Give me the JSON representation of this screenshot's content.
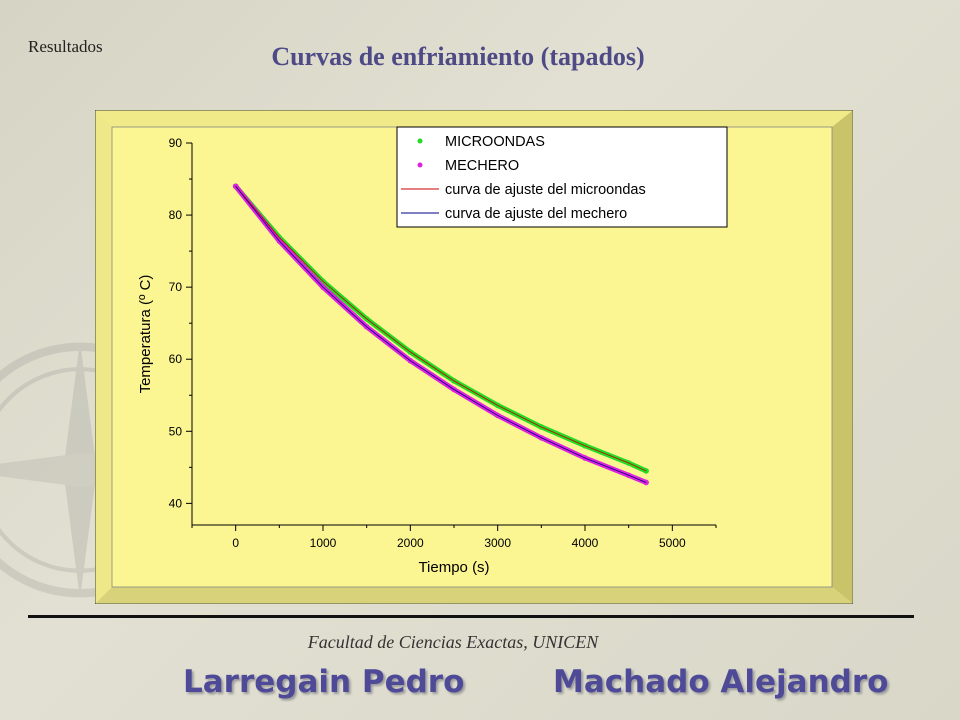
{
  "slide": {
    "section": "Resultados",
    "title": "Curvas de enfriamiento (tapados)",
    "faculty": "Facultad de Ciencias Exactas, UNICEN",
    "authors": [
      "Larregain Pedro",
      "Machado Alejandro"
    ]
  },
  "colors": {
    "plot_background": "#fbf592",
    "bevel": "#d8d27a",
    "microondas": "#22dd22",
    "mechero": "#dd22dd",
    "fit_microondas": "#cc0000",
    "fit_mechero": "#000080",
    "title": "#4d4a86",
    "authors": "#4e4a98"
  },
  "chart_data": {
    "type": "line",
    "xlabel": "Tiempo (s)",
    "ylabel": "Temperatura (º C)",
    "xlim": [
      -500,
      5500
    ],
    "ylim": [
      37,
      90
    ],
    "xticks": [
      0,
      1000,
      2000,
      3000,
      4000,
      5000
    ],
    "yticks": [
      40,
      50,
      60,
      70,
      80,
      90
    ],
    "grid": false,
    "legend_position": "top-right",
    "legend": [
      {
        "label": "MICROONDAS",
        "kind": "marker",
        "color": "#22dd22"
      },
      {
        "label": "MECHERO",
        "kind": "marker",
        "color": "#dd22dd"
      },
      {
        "label": "curva de ajuste del microondas",
        "kind": "line",
        "color": "#cc0000"
      },
      {
        "label": "curva de ajuste del mechero",
        "kind": "line",
        "color": "#000080"
      }
    ],
    "series": [
      {
        "name": "MICROONDAS",
        "type": "scatter",
        "color": "#22dd22",
        "x": [
          0,
          500,
          1000,
          1500,
          2000,
          2500,
          3000,
          3500,
          4000,
          4500,
          4700
        ],
        "y": [
          84.0,
          76.9,
          70.8,
          65.6,
          61.0,
          57.0,
          53.6,
          50.6,
          48.0,
          45.6,
          44.5
        ]
      },
      {
        "name": "MECHERO",
        "type": "scatter",
        "color": "#dd22dd",
        "x": [
          0,
          500,
          1000,
          1500,
          2000,
          2500,
          3000,
          3500,
          4000,
          4500,
          4700
        ],
        "y": [
          84.0,
          76.4,
          70.0,
          64.5,
          59.8,
          55.8,
          52.2,
          49.1,
          46.3,
          43.9,
          42.9
        ]
      },
      {
        "name": "curva de ajuste del microondas",
        "type": "line",
        "color": "#cc0000",
        "x": [
          0,
          500,
          1000,
          1500,
          2000,
          2500,
          3000,
          3500,
          4000,
          4500,
          4700
        ],
        "y": [
          84.0,
          76.9,
          70.8,
          65.6,
          61.0,
          57.0,
          53.6,
          50.6,
          48.0,
          45.6,
          44.5
        ]
      },
      {
        "name": "curva de ajuste del mechero",
        "type": "line",
        "color": "#000080",
        "x": [
          0,
          500,
          1000,
          1500,
          2000,
          2500,
          3000,
          3500,
          4000,
          4500,
          4700
        ],
        "y": [
          84.0,
          76.4,
          70.0,
          64.5,
          59.8,
          55.8,
          52.2,
          49.1,
          46.3,
          43.9,
          42.9
        ]
      }
    ]
  }
}
